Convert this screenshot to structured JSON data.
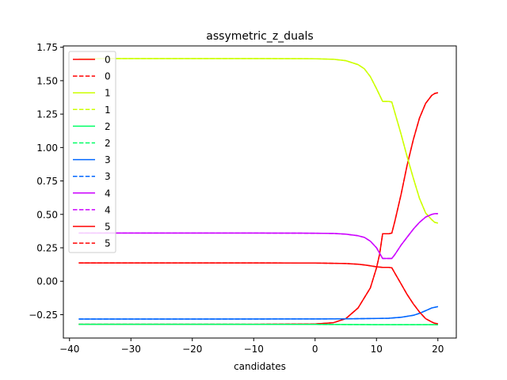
{
  "chart_data": {
    "type": "line",
    "title": "assymetric_z_duals",
    "xlabel": "candidates",
    "ylabel": "",
    "xlim": [
      -41.0,
      23.0
    ],
    "ylim": [
      -0.425,
      1.76
    ],
    "xticks": [
      -40,
      -30,
      -20,
      -10,
      0,
      10,
      20
    ],
    "xtick_labels": [
      "−40",
      "−30",
      "−20",
      "−10",
      "0",
      "10",
      "20"
    ],
    "yticks": [
      -0.25,
      0.0,
      0.25,
      0.5,
      0.75,
      1.0,
      1.25,
      1.5,
      1.75
    ],
    "ytick_labels": [
      "−0.25",
      "0.00",
      "0.25",
      "0.50",
      "0.75",
      "1.00",
      "1.25",
      "1.50",
      "1.75"
    ],
    "legend_position": "upper-left",
    "series": [
      {
        "name": "0",
        "style": "solid",
        "color": "#ff0000",
        "x": [
          -38.5,
          -10,
          0,
          3,
          5,
          7,
          9,
          10,
          10.5,
          11,
          12,
          12.5,
          13,
          14,
          15,
          16,
          17,
          18,
          19,
          19.5,
          20
        ],
        "y": [
          -0.322,
          -0.322,
          -0.32,
          -0.31,
          -0.28,
          -0.2,
          -0.05,
          0.1,
          0.2,
          0.355,
          0.355,
          0.36,
          0.45,
          0.65,
          0.87,
          1.06,
          1.22,
          1.33,
          1.39,
          1.405,
          1.41
        ]
      },
      {
        "name": "0",
        "style": "dashed",
        "color": "#ff0000",
        "x": [
          -38.5,
          -10,
          0,
          3,
          5,
          7,
          9,
          10,
          10.5,
          11,
          12,
          12.5,
          13,
          14,
          15,
          16,
          17,
          18,
          19,
          19.5,
          20
        ],
        "y": [
          -0.322,
          -0.322,
          -0.32,
          -0.31,
          -0.28,
          -0.2,
          -0.05,
          0.1,
          0.2,
          0.355,
          0.355,
          0.36,
          0.45,
          0.65,
          0.87,
          1.06,
          1.22,
          1.33,
          1.39,
          1.405,
          1.41
        ]
      },
      {
        "name": "1",
        "style": "solid",
        "color": "#ccff00",
        "x": [
          -38.5,
          -10,
          0,
          3,
          5,
          7,
          8,
          9,
          10,
          11,
          12,
          12.5,
          13,
          14,
          15,
          16,
          17,
          18,
          19,
          19.5,
          20
        ],
        "y": [
          1.665,
          1.665,
          1.664,
          1.66,
          1.65,
          1.62,
          1.59,
          1.53,
          1.44,
          1.345,
          1.345,
          1.34,
          1.26,
          1.1,
          0.93,
          0.77,
          0.62,
          0.51,
          0.46,
          0.44,
          0.435
        ]
      },
      {
        "name": "1",
        "style": "dashed",
        "color": "#ccff00",
        "x": [
          -38.5,
          -10,
          0,
          3,
          5,
          7,
          8,
          9,
          10,
          11,
          12,
          12.5,
          13,
          14,
          15,
          16,
          17,
          18,
          19,
          19.5,
          20
        ],
        "y": [
          1.665,
          1.665,
          1.664,
          1.66,
          1.65,
          1.62,
          1.59,
          1.53,
          1.44,
          1.345,
          1.345,
          1.34,
          1.26,
          1.1,
          0.93,
          0.77,
          0.62,
          0.51,
          0.46,
          0.44,
          0.435
        ]
      },
      {
        "name": "2",
        "style": "solid",
        "color": "#00ff66",
        "x": [
          -38.5,
          -20,
          0,
          10,
          15,
          20
        ],
        "y": [
          -0.322,
          -0.322,
          -0.323,
          -0.325,
          -0.325,
          -0.325
        ]
      },
      {
        "name": "2",
        "style": "dashed",
        "color": "#00ff66",
        "x": [
          -38.5,
          -20,
          0,
          10,
          15,
          20
        ],
        "y": [
          -0.322,
          -0.322,
          -0.323,
          -0.325,
          -0.325,
          -0.325
        ]
      },
      {
        "name": "3",
        "style": "solid",
        "color": "#0066ff",
        "x": [
          -38.5,
          -20,
          0,
          5,
          10,
          12,
          14,
          16,
          17,
          18,
          19,
          20
        ],
        "y": [
          -0.283,
          -0.283,
          -0.282,
          -0.281,
          -0.279,
          -0.277,
          -0.27,
          -0.255,
          -0.24,
          -0.22,
          -0.2,
          -0.19
        ]
      },
      {
        "name": "3",
        "style": "dashed",
        "color": "#0066ff",
        "x": [
          -38.5,
          -20,
          0,
          5,
          10,
          12,
          14,
          16,
          17,
          18,
          19,
          20
        ],
        "y": [
          -0.283,
          -0.283,
          -0.282,
          -0.281,
          -0.279,
          -0.277,
          -0.27,
          -0.255,
          -0.24,
          -0.22,
          -0.2,
          -0.19
        ]
      },
      {
        "name": "4",
        "style": "solid",
        "color": "#cc00ff",
        "x": [
          -38.5,
          -10,
          0,
          3,
          5,
          7,
          8,
          9,
          10,
          11,
          12,
          12.5,
          13,
          14,
          15,
          16,
          17,
          18,
          19,
          19.5,
          20
        ],
        "y": [
          0.36,
          0.36,
          0.359,
          0.357,
          0.352,
          0.34,
          0.328,
          0.3,
          0.25,
          0.17,
          0.17,
          0.17,
          0.2,
          0.27,
          0.33,
          0.39,
          0.44,
          0.48,
          0.5,
          0.505,
          0.505
        ]
      },
      {
        "name": "4",
        "style": "dashed",
        "color": "#cc00ff",
        "x": [
          -38.5,
          -10,
          0,
          3,
          5,
          7,
          8,
          9,
          10,
          11,
          12,
          12.5,
          13,
          14,
          15,
          16,
          17,
          18,
          19,
          19.5,
          20
        ],
        "y": [
          0.36,
          0.36,
          0.359,
          0.357,
          0.352,
          0.34,
          0.328,
          0.3,
          0.25,
          0.17,
          0.17,
          0.17,
          0.2,
          0.27,
          0.33,
          0.39,
          0.44,
          0.48,
          0.5,
          0.505,
          0.505
        ]
      },
      {
        "name": "5",
        "style": "solid",
        "color": "#ff0000",
        "x": [
          -38.5,
          -10,
          0,
          3,
          5,
          7,
          8,
          9,
          10,
          11,
          12,
          12.5,
          13,
          14,
          15,
          16,
          17,
          18,
          19,
          19.5,
          20
        ],
        "y": [
          0.137,
          0.137,
          0.136,
          0.134,
          0.132,
          0.127,
          0.122,
          0.115,
          0.108,
          0.103,
          0.103,
          0.1,
          0.06,
          -0.02,
          -0.1,
          -0.17,
          -0.23,
          -0.28,
          -0.305,
          -0.315,
          -0.318
        ]
      },
      {
        "name": "5",
        "style": "dashed",
        "color": "#ff0000",
        "x": [
          -38.5,
          -10,
          0,
          3,
          5,
          7,
          8,
          9,
          10,
          11,
          12,
          12.5,
          13,
          14,
          15,
          16,
          17,
          18,
          19,
          19.5,
          20
        ],
        "y": [
          0.137,
          0.137,
          0.136,
          0.134,
          0.132,
          0.127,
          0.122,
          0.115,
          0.108,
          0.103,
          0.103,
          0.1,
          0.06,
          -0.02,
          -0.1,
          -0.17,
          -0.23,
          -0.28,
          -0.305,
          -0.315,
          -0.318
        ]
      }
    ]
  }
}
